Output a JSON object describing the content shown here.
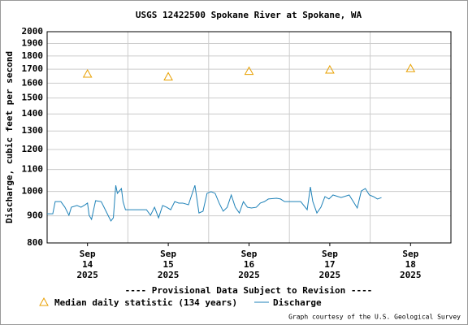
{
  "chart_data": {
    "type": "line",
    "title": "USGS 12422500 Spokane River at Spokane, WA",
    "y_label": "Discharge, cubic feet per second",
    "annotation": "---- Provisional Data Subject to Revision ----",
    "annotation_color": "#cc0000",
    "credit": "Graph courtesy of the U.S. Geological Survey",
    "y_log": true,
    "grid": true,
    "xlim": [
      14,
      19
    ],
    "ylim": [
      800,
      2000
    ],
    "yticks": [
      800,
      900,
      1000,
      1100,
      1200,
      1300,
      1400,
      1500,
      1600,
      1700,
      1800,
      1900,
      2000
    ],
    "xgrid": [
      15,
      16,
      17,
      18
    ],
    "xticks": [
      {
        "value": 14.5,
        "label": "Sep 14 2025"
      },
      {
        "value": 15.5,
        "label": "Sep 15 2025"
      },
      {
        "value": 16.5,
        "label": "Sep 16 2025"
      },
      {
        "value": 17.5,
        "label": "Sep 17 2025"
      },
      {
        "value": 18.5,
        "label": "Sep 18 2025"
      }
    ],
    "series": [
      {
        "name": "Median daily statistic (134 years)",
        "color": "#e8a000",
        "marker": "triangle",
        "x": [
          14.5,
          15.5,
          16.5,
          17.5,
          18.5
        ],
        "values": [
          1665,
          1645,
          1685,
          1695,
          1705
        ]
      },
      {
        "name": "Discharge",
        "color": "#1f82b8",
        "marker": "line",
        "x": [
          14.0,
          14.07,
          14.1,
          14.17,
          14.22,
          14.27,
          14.3,
          14.37,
          14.42,
          14.47,
          14.5,
          14.52,
          14.55,
          14.6,
          14.67,
          14.72,
          14.77,
          14.79,
          14.82,
          14.85,
          14.87,
          14.92,
          14.94,
          14.97,
          15.03,
          15.13,
          15.23,
          15.28,
          15.33,
          15.38,
          15.43,
          15.48,
          15.53,
          15.58,
          15.63,
          15.68,
          15.75,
          15.83,
          15.88,
          15.93,
          15.98,
          16.03,
          16.08,
          16.13,
          16.18,
          16.23,
          16.28,
          16.33,
          16.38,
          16.43,
          16.48,
          16.53,
          16.59,
          16.64,
          16.69,
          16.74,
          16.84,
          16.89,
          16.94,
          17.04,
          17.14,
          17.22,
          17.26,
          17.29,
          17.34,
          17.39,
          17.44,
          17.49,
          17.54,
          17.64,
          17.74,
          17.84,
          17.89,
          17.94,
          17.99,
          18.04,
          18.09,
          18.14
        ],
        "values": [
          908,
          908,
          957,
          957,
          934,
          902,
          934,
          941,
          934,
          944,
          951,
          902,
          886,
          961,
          957,
          924,
          892,
          880,
          892,
          1027,
          992,
          1013,
          957,
          924,
          924,
          924,
          924,
          902,
          934,
          892,
          941,
          934,
          924,
          957,
          951,
          951,
          944,
          1027,
          911,
          918,
          992,
          999,
          992,
          951,
          918,
          934,
          985,
          934,
          911,
          957,
          934,
          931,
          934,
          951,
          957,
          968,
          971,
          968,
          957,
          957,
          957,
          924,
          1020,
          957,
          911,
          934,
          978,
          968,
          985,
          974,
          985,
          931,
          1002,
          1013,
          985,
          978,
          968,
          974
        ]
      }
    ]
  }
}
